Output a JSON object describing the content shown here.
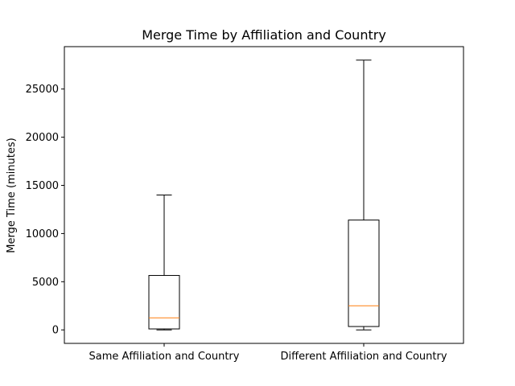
{
  "chart_data": {
    "type": "boxplot",
    "title": "Merge Time by Affiliation and Country",
    "xlabel": "",
    "ylabel": "Merge Time (minutes)",
    "categories": [
      "Same Affiliation and Country",
      "Different Affiliation and Country"
    ],
    "boxes": [
      {
        "whisker_low": 0,
        "q1": 100,
        "median": 1250,
        "q3": 5650,
        "whisker_high": 14000
      },
      {
        "whisker_low": 0,
        "q1": 350,
        "median": 2500,
        "q3": 11400,
        "whisker_high": 28000
      }
    ],
    "ylim": [
      -1400,
      29400
    ],
    "yticks": [
      0,
      5000,
      10000,
      15000,
      20000,
      25000
    ],
    "ytick_labels": [
      "0",
      "5000",
      "10000",
      "15000",
      "20000",
      "25000"
    ],
    "grid": false,
    "colors": {
      "box": "#000000",
      "median": "#ff7f0e",
      "whisker": "#000000"
    }
  }
}
